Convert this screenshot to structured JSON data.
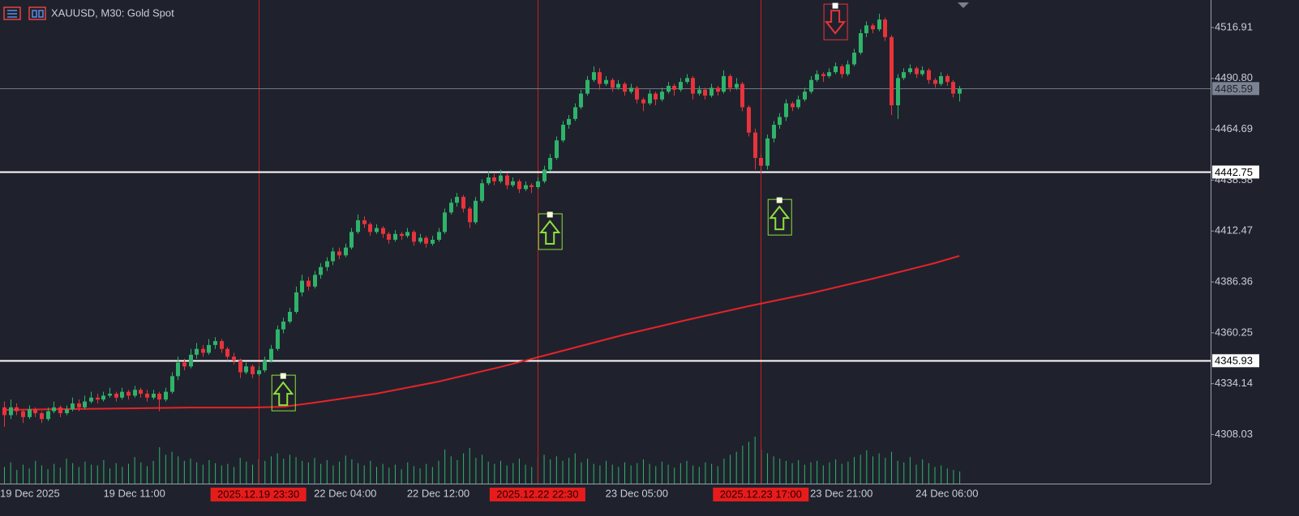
{
  "chart_data": {
    "type": "candlestick",
    "title": "XAUUSD, M30:  Gold Spot",
    "up_color": "#2fb36a",
    "down_color": "#e8333b",
    "ylim": [
      4282.87,
      4531.04
    ],
    "yticks": [
      4308.03,
      4334.14,
      4360.25,
      4386.36,
      4412.47,
      4438.58,
      4464.69,
      {
        "value": 4490.8,
        "label": "4490.80"
      },
      4516.91
    ],
    "xlabels": [
      {
        "index": 0,
        "label": "19 Dec 2025"
      },
      {
        "index": 21,
        "label": "19 Dec 11:00"
      },
      {
        "index": 55,
        "label": "22 Dec 04:00"
      },
      {
        "index": 70,
        "label": "22 Dec 12:00"
      },
      {
        "index": 102,
        "label": "23 Dec 05:00"
      },
      {
        "index": 135,
        "label": "23 Dec 21:00"
      },
      {
        "index": 152,
        "label": "24 Dec 06:00"
      }
    ],
    "events": [
      {
        "index": 41,
        "label": "2025.12.19 23:30"
      },
      {
        "index": 86,
        "label": "2025.12.22 22:30"
      },
      {
        "index": 122,
        "label": "2025.12.23 17:00"
      }
    ],
    "levels": [
      4442.75,
      4345.93
    ],
    "current_price": 4485.59,
    "signals": [
      {
        "index": 45,
        "direction": "up",
        "price": 4338.1
      },
      {
        "index": 88,
        "direction": "up",
        "price": 4420.9
      },
      {
        "index": 125,
        "direction": "up",
        "price": 4428.3
      },
      {
        "index": 134,
        "direction": "down",
        "price": 4528.1
      }
    ],
    "ma": {
      "color": "#e8222a",
      "x": [
        0,
        10,
        20,
        30,
        40,
        45,
        50,
        60,
        70,
        80,
        90,
        100,
        110,
        120,
        130,
        140,
        150,
        154
      ],
      "values": [
        4320.7,
        4321.1,
        4321.5,
        4321.9,
        4321.9,
        4322.3,
        4324.4,
        4329.0,
        4335.2,
        4342.7,
        4351.0,
        4359.3,
        4366.8,
        4373.9,
        4380.5,
        4388.0,
        4396.0,
        4399.7
      ]
    },
    "candles": [
      [
        4322,
        4325,
        4312,
        4318
      ],
      [
        4318,
        4326,
        4316,
        4322
      ],
      [
        4322,
        4324,
        4318,
        4320
      ],
      [
        4320,
        4321,
        4314,
        4317
      ],
      [
        4317,
        4323,
        4316,
        4321
      ],
      [
        4321,
        4322,
        4317,
        4319
      ],
      [
        4319,
        4320,
        4314,
        4316
      ],
      [
        4316,
        4322,
        4315,
        4320
      ],
      [
        4320,
        4325,
        4319,
        4322
      ],
      [
        4322,
        4323,
        4317,
        4319
      ],
      [
        4319,
        4323,
        4318,
        4321
      ],
      [
        4321,
        4327,
        4320,
        4324
      ],
      [
        4324,
        4326,
        4320,
        4322
      ],
      [
        4322,
        4328,
        4321,
        4325
      ],
      [
        4325,
        4330,
        4324,
        4327
      ],
      [
        4327,
        4329,
        4324,
        4326
      ],
      [
        4326,
        4330,
        4325,
        4328
      ],
      [
        4328,
        4332,
        4327,
        4329
      ],
      [
        4329,
        4330,
        4325,
        4327
      ],
      [
        4327,
        4332,
        4326,
        4330
      ],
      [
        4330,
        4331,
        4326,
        4328
      ],
      [
        4328,
        4333,
        4327,
        4331
      ],
      [
        4331,
        4332,
        4327,
        4329
      ],
      [
        4329,
        4331,
        4325,
        4327
      ],
      [
        4327,
        4331,
        4326,
        4329
      ],
      [
        4329,
        4330,
        4320,
        4326
      ],
      [
        4326,
        4332,
        4325,
        4330
      ],
      [
        4330,
        4340,
        4329,
        4338
      ],
      [
        4338,
        4348,
        4336,
        4345
      ],
      [
        4345,
        4347,
        4341,
        4343
      ],
      [
        4343,
        4352,
        4342,
        4349
      ],
      [
        4349,
        4355,
        4347,
        4352
      ],
      [
        4352,
        4354,
        4348,
        4350
      ],
      [
        4350,
        4357,
        4349,
        4354
      ],
      [
        4354,
        4358,
        4352,
        4356
      ],
      [
        4356,
        4357,
        4350,
        4352
      ],
      [
        4352,
        4353,
        4346,
        4348
      ],
      [
        4348,
        4350,
        4344,
        4346
      ],
      [
        4346,
        4347,
        4337,
        4340
      ],
      [
        4340,
        4345,
        4339,
        4343
      ],
      [
        4343,
        4344,
        4337,
        4339
      ],
      [
        4339,
        4343,
        4338,
        4341
      ],
      [
        4341,
        4348,
        4340,
        4346
      ],
      [
        4346,
        4354,
        4345,
        4352
      ],
      [
        4352,
        4364,
        4351,
        4362
      ],
      [
        4362,
        4368,
        4360,
        4366
      ],
      [
        4366,
        4373,
        4365,
        4371
      ],
      [
        4371,
        4384,
        4370,
        4381
      ],
      [
        4381,
        4390,
        4379,
        4387
      ],
      [
        4387,
        4389,
        4382,
        4384
      ],
      [
        4384,
        4392,
        4383,
        4390
      ],
      [
        4390,
        4396,
        4388,
        4394
      ],
      [
        4394,
        4399,
        4392,
        4397
      ],
      [
        4397,
        4404,
        4395,
        4402
      ],
      [
        4402,
        4404,
        4398,
        4400
      ],
      [
        4400,
        4406,
        4399,
        4404
      ],
      [
        4404,
        4414,
        4403,
        4412
      ],
      [
        4412,
        4421,
        4411,
        4418
      ],
      [
        4418,
        4420,
        4414,
        4416
      ],
      [
        4416,
        4417,
        4410,
        4412
      ],
      [
        4412,
        4416,
        4411,
        4414
      ],
      [
        4414,
        4415,
        4409,
        4411
      ],
      [
        4411,
        4412,
        4406,
        4408
      ],
      [
        4408,
        4413,
        4407,
        4411
      ],
      [
        4411,
        4412,
        4408,
        4410
      ],
      [
        4410,
        4414,
        4409,
        4412
      ],
      [
        4412,
        4413,
        4405,
        4407
      ],
      [
        4407,
        4411,
        4406,
        4409
      ],
      [
        4409,
        4410,
        4404,
        4406
      ],
      [
        4406,
        4410,
        4405,
        4408
      ],
      [
        4408,
        4414,
        4407,
        4412
      ],
      [
        4412,
        4424,
        4411,
        4422
      ],
      [
        4422,
        4429,
        4421,
        4427
      ],
      [
        4427,
        4432,
        4425,
        4430
      ],
      [
        4430,
        4431,
        4422,
        4424
      ],
      [
        4424,
        4425,
        4414,
        4417
      ],
      [
        4417,
        4430,
        4416,
        4428
      ],
      [
        4428,
        4439,
        4427,
        4437
      ],
      [
        4437,
        4443,
        4436,
        4440
      ],
      [
        4440,
        4442,
        4436,
        4438
      ],
      [
        4438,
        4444,
        4437,
        4441
      ],
      [
        4441,
        4442,
        4434,
        4436
      ],
      [
        4436,
        4440,
        4435,
        4438
      ],
      [
        4438,
        4439,
        4432,
        4434
      ],
      [
        4434,
        4438,
        4433,
        4436
      ],
      [
        4436,
        4437,
        4432,
        4435
      ],
      [
        4435,
        4440,
        4434,
        4438
      ],
      [
        4438,
        4446,
        4437,
        4444
      ],
      [
        4444,
        4452,
        4443,
        4450
      ],
      [
        4450,
        4461,
        4449,
        4459
      ],
      [
        4459,
        4469,
        4458,
        4467
      ],
      [
        4467,
        4472,
        4465,
        4470
      ],
      [
        4470,
        4478,
        4469,
        4476
      ],
      [
        4476,
        4485,
        4475,
        4483
      ],
      [
        4483,
        4492,
        4482,
        4490
      ],
      [
        4490,
        4497,
        4489,
        4494
      ],
      [
        4494,
        4496,
        4485,
        4488
      ],
      [
        4488,
        4492,
        4487,
        4490
      ],
      [
        4490,
        4491,
        4484,
        4486
      ],
      [
        4486,
        4490,
        4485,
        4488
      ],
      [
        4488,
        4489,
        4482,
        4484
      ],
      [
        4484,
        4488,
        4483,
        4486
      ],
      [
        4486,
        4487,
        4478,
        4480
      ],
      [
        4480,
        4481,
        4474,
        4478
      ],
      [
        4478,
        4485,
        4477,
        4483
      ],
      [
        4483,
        4484,
        4477,
        4480
      ],
      [
        4480,
        4486,
        4479,
        4484
      ],
      [
        4484,
        4489,
        4483,
        4487
      ],
      [
        4487,
        4488,
        4482,
        4485
      ],
      [
        4485,
        4491,
        4484,
        4489
      ],
      [
        4489,
        4493,
        4488,
        4491
      ],
      [
        4491,
        4492,
        4480,
        4483
      ],
      [
        4483,
        4487,
        4482,
        4485
      ],
      [
        4485,
        4486,
        4480,
        4482
      ],
      [
        4482,
        4488,
        4481,
        4486
      ],
      [
        4486,
        4487,
        4482,
        4484
      ],
      [
        4484,
        4495,
        4483,
        4492
      ],
      [
        4492,
        4493,
        4484,
        4486
      ],
      [
        4486,
        4491,
        4485,
        4488
      ],
      [
        4488,
        4489,
        4474,
        4476
      ],
      [
        4476,
        4477,
        4461,
        4463
      ],
      [
        4463,
        4465,
        4444,
        4450
      ],
      [
        4450,
        4452,
        4442,
        4446
      ],
      [
        4446,
        4462,
        4444,
        4460
      ],
      [
        4460,
        4469,
        4458,
        4467
      ],
      [
        4467,
        4473,
        4465,
        4471
      ],
      [
        4471,
        4480,
        4469,
        4478
      ],
      [
        4478,
        4479,
        4474,
        4476
      ],
      [
        4476,
        4482,
        4475,
        4480
      ],
      [
        4480,
        4486,
        4479,
        4484
      ],
      [
        4484,
        4492,
        4483,
        4490
      ],
      [
        4490,
        4495,
        4489,
        4493
      ],
      [
        4493,
        4494,
        4489,
        4492
      ],
      [
        4492,
        4496,
        4491,
        4494
      ],
      [
        4494,
        4499,
        4493,
        4497
      ],
      [
        4497,
        4498,
        4491,
        4493
      ],
      [
        4493,
        4500,
        4492,
        4498
      ],
      [
        4498,
        4506,
        4497,
        4504
      ],
      [
        4504,
        4516,
        4503,
        4514
      ],
      [
        4514,
        4520,
        4512,
        4518
      ],
      [
        4518,
        4519,
        4514,
        4516
      ],
      [
        4516,
        4524,
        4515,
        4521
      ],
      [
        4521,
        4522,
        4510,
        4512
      ],
      [
        4512,
        4513,
        4472,
        4477
      ],
      [
        4477,
        4493,
        4470,
        4491
      ],
      [
        4491,
        4496,
        4490,
        4494
      ],
      [
        4494,
        4498,
        4493,
        4496
      ],
      [
        4496,
        4497,
        4491,
        4493
      ],
      [
        4493,
        4497,
        4492,
        4495
      ],
      [
        4495,
        4496,
        4488,
        4490
      ],
      [
        4490,
        4491,
        4486,
        4488
      ],
      [
        4488,
        4494,
        4487,
        4492
      ],
      [
        4492,
        4493,
        4487,
        4489
      ],
      [
        4489,
        4490,
        4481,
        4483
      ],
      [
        4483,
        4487,
        4479,
        4485.59
      ]
    ],
    "volume": [
      22,
      28,
      18,
      25,
      20,
      30,
      24,
      19,
      26,
      21,
      33,
      27,
      22,
      29,
      25,
      24,
      31,
      20,
      27,
      22,
      26,
      35,
      28,
      23,
      30,
      48,
      38,
      42,
      36,
      30,
      33,
      28,
      25,
      31,
      27,
      24,
      26,
      22,
      34,
      29,
      25,
      32,
      30,
      36,
      40,
      33,
      38,
      35,
      30,
      28,
      34,
      26,
      31,
      24,
      29,
      37,
      32,
      27,
      24,
      30,
      22,
      26,
      21,
      25,
      19,
      28,
      23,
      20,
      26,
      22,
      30,
      45,
      36,
      31,
      40,
      47,
      34,
      38,
      29,
      26,
      30,
      24,
      27,
      33,
      25,
      22,
      35,
      38,
      32,
      36,
      30,
      34,
      40,
      28,
      33,
      26,
      24,
      30,
      25,
      22,
      28,
      24,
      27,
      32,
      26,
      23,
      29,
      25,
      21,
      27,
      30,
      24,
      22,
      28,
      26,
      23,
      33,
      38,
      42,
      50,
      55,
      62,
      45,
      40,
      36,
      33,
      30,
      27,
      31,
      25,
      28,
      30,
      24,
      28,
      32,
      26,
      29,
      35,
      38,
      44,
      36,
      40,
      34,
      42,
      30,
      28,
      35,
      25,
      32,
      27,
      22,
      24,
      20,
      18,
      16
    ]
  }
}
